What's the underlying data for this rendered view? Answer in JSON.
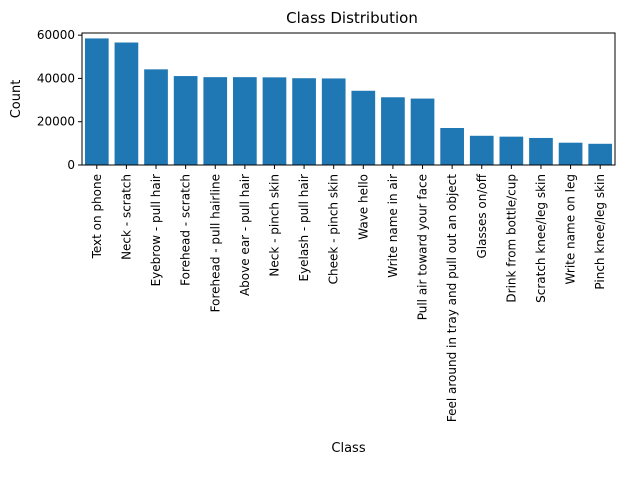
{
  "chart_data": {
    "type": "bar",
    "title": "Class Distribution",
    "xlabel": "Class",
    "ylabel": "Count",
    "ylim": [
      0,
      61000
    ],
    "yticks": [
      0,
      20000,
      40000,
      60000
    ],
    "bar_color": "#1f77b4",
    "grid": false,
    "categories": [
      "Text on phone",
      "Neck - scratch",
      "Eyebrow - pull hair",
      "Forehead - scratch",
      "Forehead - pull hairline",
      "Above ear - pull hair",
      "Neck - pinch skin",
      "Eyelash - pull hair",
      "Cheek - pinch skin",
      "Wave hello",
      "Write name in air",
      "Pull air toward your face",
      "Feel around in tray and pull out an object",
      "Glasses on/off",
      "Drink from bottle/cup",
      "Scratch knee/leg skin",
      "Write name on leg",
      "Pinch knee/leg skin"
    ],
    "values": [
      58500,
      56600,
      44200,
      41100,
      40600,
      40600,
      40500,
      40100,
      40000,
      34300,
      31300,
      30700,
      17100,
      13500,
      13100,
      12500,
      10300,
      9800
    ]
  }
}
